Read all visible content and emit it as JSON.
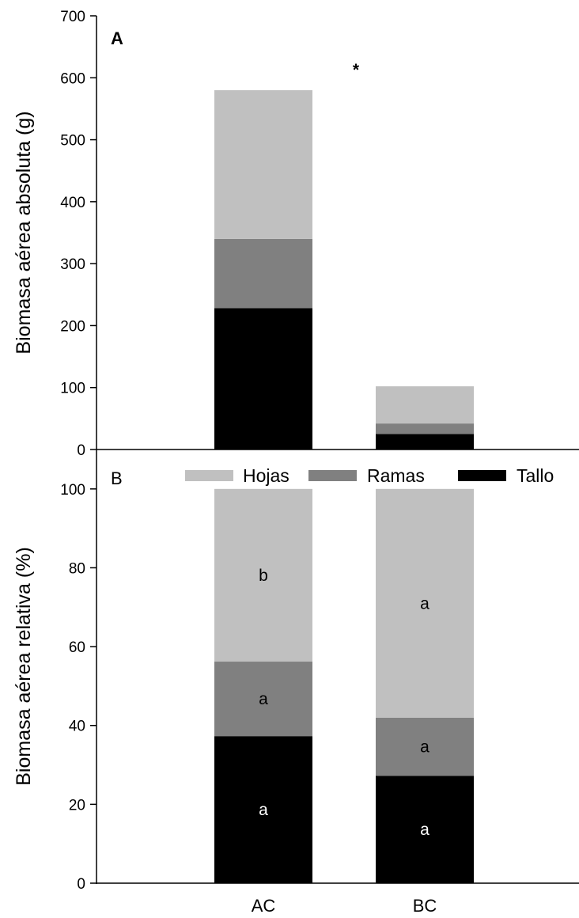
{
  "colors": {
    "Hojas": "#c0c0c0",
    "Ramas": "#808080",
    "Tallo": "#000000"
  },
  "legend": {
    "placement": "top",
    "items": [
      {
        "label": "Hojas",
        "color_key": "Hojas"
      },
      {
        "label": "Ramas",
        "color_key": "Ramas"
      },
      {
        "label": "Tallo",
        "color_key": "Tallo"
      }
    ]
  },
  "chart_data": [
    {
      "type": "bar",
      "stacked": true,
      "panel": "A",
      "categories": [
        "AC",
        "BC"
      ],
      "series": [
        {
          "name": "Tallo",
          "values": [
            228,
            25
          ]
        },
        {
          "name": "Ramas",
          "values": [
            112,
            17
          ]
        },
        {
          "name": "Hojas",
          "values": [
            240,
            60
          ]
        }
      ],
      "ylabel": "Biomasa aérea absoluta (g)",
      "ylim": [
        0,
        700
      ],
      "yticks": [
        0,
        100,
        200,
        300,
        400,
        500,
        600,
        700
      ],
      "annotations": [
        {
          "text": "*",
          "position": "between bars, upper area"
        }
      ],
      "grid": false
    },
    {
      "type": "bar",
      "stacked": true,
      "panel": "B",
      "categories": [
        "AC",
        "BC"
      ],
      "series": [
        {
          "name": "Tallo",
          "values": [
            37.3,
            27.2
          ],
          "labels": [
            "a",
            "a"
          ]
        },
        {
          "name": "Ramas",
          "values": [
            18.9,
            14.8
          ],
          "labels": [
            "a",
            "a"
          ]
        },
        {
          "name": "Hojas",
          "values": [
            43.8,
            58.0
          ],
          "labels": [
            "b",
            "a"
          ]
        }
      ],
      "ylabel": "Biomasa aérea relativa (%)",
      "ylim": [
        0,
        110
      ],
      "yticks": [
        0,
        20,
        40,
        60,
        80,
        100
      ],
      "xlabels": [
        "AC",
        "BC"
      ],
      "grid": false
    }
  ]
}
